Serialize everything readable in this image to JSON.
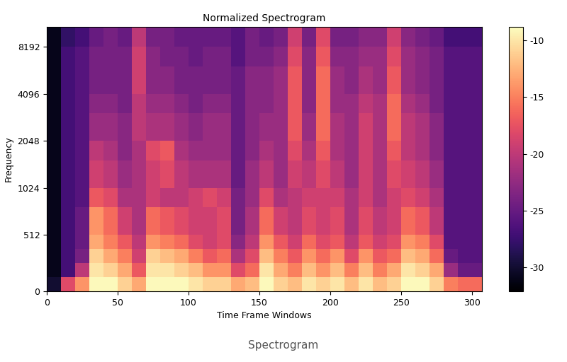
{
  "chart_data": {
    "type": "heatmap",
    "title": "Normalized Spectrogram",
    "x_label": "Time Frame Windows",
    "y_label": "Frequency",
    "caption": "Spectrogram",
    "log": "y",
    "color": "magma",
    "xlim": [
      0,
      307
    ],
    "xticks": [
      0,
      50,
      100,
      150,
      200,
      250,
      300
    ],
    "ylim": [
      0,
      11025
    ],
    "yticks": [
      0,
      512,
      1024,
      2048,
      4096,
      8192
    ],
    "colorbar_lim": [
      -32.1,
      -8.8
    ],
    "colorbar_ticks": [
      -30,
      -25,
      -20,
      -15,
      -10
    ],
    "x_edges": [
      0,
      10,
      20,
      30,
      40,
      50,
      60,
      70,
      80,
      90,
      100,
      110,
      120,
      130,
      140,
      150,
      160,
      170,
      180,
      190,
      200,
      210,
      220,
      230,
      240,
      250,
      260,
      270,
      280,
      290,
      300,
      307
    ],
    "y_edges": [
      0,
      128,
      256,
      384,
      512,
      768,
      1024,
      1536,
      2048,
      3072,
      4096,
      6144,
      8192,
      11025
    ],
    "cells": [
      [
        -30,
        -31,
        -31,
        -31,
        -31,
        -31,
        -31,
        -31,
        -31,
        -31,
        -31,
        -31,
        -31
      ],
      [
        -18,
        -27,
        -27,
        -27,
        -27,
        -27,
        -27,
        -27,
        -27,
        -27,
        -27,
        -27,
        -28
      ],
      [
        -14,
        -20,
        -24,
        -25,
        -25,
        -26,
        -26,
        -26,
        -26,
        -26,
        -26,
        -26,
        -27
      ],
      [
        -9,
        -10,
        -11,
        -13,
        -14,
        -17,
        -19,
        -20,
        -22,
        -23,
        -24,
        -24,
        -25
      ],
      [
        -9,
        -11,
        -13,
        -15,
        -16,
        -18,
        -20,
        -21,
        -22,
        -23,
        -24,
        -24,
        -24
      ],
      [
        -11,
        -13,
        -15,
        -17,
        -19,
        -21,
        -22,
        -23,
        -23,
        -24,
        -24,
        -24,
        -25
      ],
      [
        -13,
        -17,
        -19,
        -20,
        -21,
        -21,
        -21,
        -21,
        -20,
        -20,
        -19,
        -19,
        -20
      ],
      [
        -9,
        -10,
        -11,
        -14,
        -16,
        -19,
        -19,
        -18,
        -21,
        -22,
        -23,
        -23,
        -24
      ],
      [
        -9,
        -10,
        -12,
        -15,
        -17,
        -20,
        -18,
        -17,
        -21,
        -22,
        -23,
        -24,
        -24
      ],
      [
        -9,
        -11,
        -13,
        -16,
        -18,
        -20,
        -20,
        -21,
        -22,
        -23,
        -24,
        -24,
        -25
      ],
      [
        -10,
        -12,
        -15,
        -18,
        -19,
        -19,
        -21,
        -22,
        -23,
        -24,
        -24,
        -25,
        -25
      ],
      [
        -11,
        -14,
        -17,
        -19,
        -19,
        -18,
        -21,
        -22,
        -22,
        -23,
        -24,
        -24,
        -25
      ],
      [
        -11,
        -14,
        -16,
        -18,
        -18,
        -19,
        -21,
        -22,
        -22,
        -23,
        -24,
        -24,
        -25
      ],
      [
        -13,
        -18,
        -21,
        -23,
        -24,
        -24,
        -25,
        -25,
        -25,
        -25,
        -25,
        -26,
        -26
      ],
      [
        -12,
        -16,
        -18,
        -20,
        -21,
        -22,
        -22,
        -23,
        -23,
        -23,
        -23,
        -24,
        -24
      ],
      [
        -9,
        -10,
        -12,
        -14,
        -16,
        -18,
        -20,
        -21,
        -22,
        -23,
        -23,
        -24,
        -25
      ],
      [
        -11,
        -13,
        -15,
        -17,
        -19,
        -21,
        -22,
        -22,
        -22,
        -22,
        -22,
        -23,
        -24
      ],
      [
        -12,
        -15,
        -17,
        -19,
        -20,
        -20,
        -19,
        -18,
        -17,
        -17,
        -17,
        -18,
        -19
      ],
      [
        -10,
        -12,
        -14,
        -16,
        -18,
        -19,
        -20,
        -21,
        -22,
        -23,
        -23,
        -23,
        -24
      ],
      [
        -11,
        -14,
        -16,
        -18,
        -19,
        -19,
        -18,
        -17,
        -16,
        -16,
        -16,
        -17,
        -18
      ],
      [
        -10,
        -12,
        -14,
        -17,
        -18,
        -19,
        -20,
        -21,
        -21,
        -22,
        -22,
        -23,
        -24
      ],
      [
        -12,
        -15,
        -18,
        -20,
        -21,
        -21,
        -22,
        -22,
        -22,
        -22,
        -23,
        -23,
        -24
      ],
      [
        -10,
        -12,
        -14,
        -17,
        -18,
        -19,
        -19,
        -19,
        -19,
        -20,
        -21,
        -22,
        -23
      ],
      [
        -12,
        -15,
        -17,
        -19,
        -20,
        -21,
        -21,
        -21,
        -21,
        -21,
        -22,
        -22,
        -23
      ],
      [
        -11,
        -13,
        -16,
        -18,
        -19,
        -19,
        -18,
        -17,
        -16,
        -16,
        -17,
        -18,
        -19
      ],
      [
        -9,
        -10,
        -12,
        -14,
        -16,
        -18,
        -19,
        -20,
        -20,
        -21,
        -22,
        -22,
        -23
      ],
      [
        -9,
        -11,
        -13,
        -15,
        -17,
        -19,
        -20,
        -21,
        -21,
        -22,
        -23,
        -23,
        -24
      ],
      [
        -11,
        -13,
        -16,
        -18,
        -20,
        -21,
        -22,
        -23,
        -23,
        -24,
        -24,
        -24,
        -25
      ],
      [
        -15,
        -22,
        -25,
        -26,
        -26,
        -26,
        -26,
        -26,
        -26,
        -26,
        -26,
        -26,
        -27
      ],
      [
        -16,
        -25,
        -26,
        -26,
        -26,
        -26,
        -26,
        -26,
        -26,
        -26,
        -26,
        -26,
        -27
      ],
      [
        -16,
        -25,
        -26,
        -26,
        -26,
        -26,
        -26,
        -26,
        -26,
        -26,
        -26,
        -26,
        -27
      ]
    ]
  }
}
